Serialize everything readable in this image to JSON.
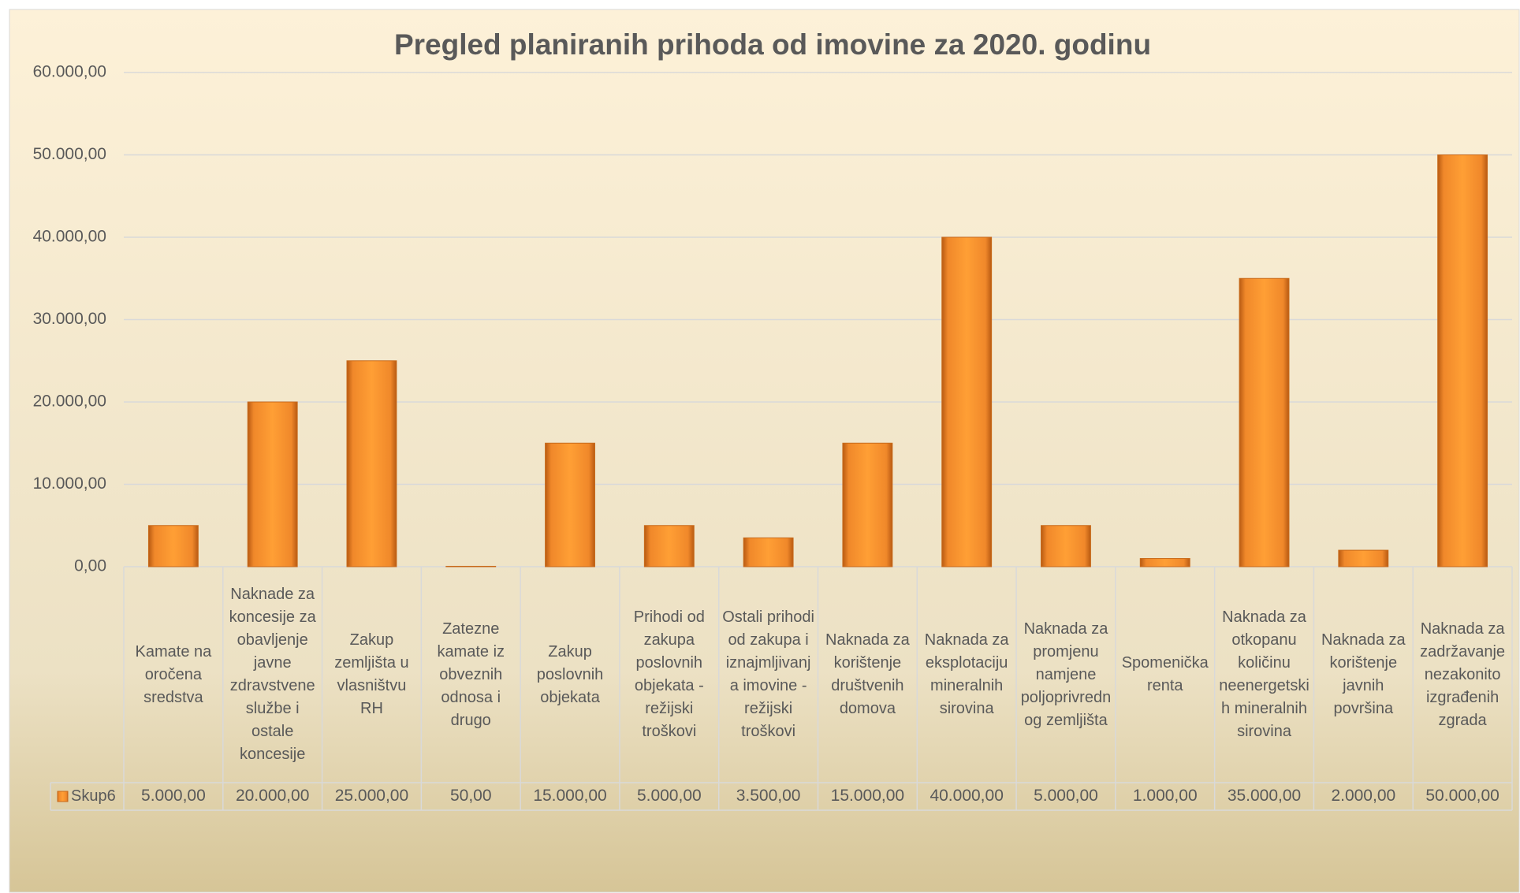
{
  "chart_data": {
    "type": "bar",
    "title": "Pregled planiranih prihoda od imovine za 2020. godinu",
    "categories": [
      "Kamate na oročena sredstva",
      "Naknade za koncesije za obavljenje javne zdravstvene službe i ostale koncesije",
      "Zakup zemljišta u vlasništvu RH",
      "Zatezne kamate iz obveznih odnosa i drugo",
      "Zakup poslovnih objekata",
      "Prihodi od zakupa poslovnih objekata - režijski troškovi",
      "Ostali prihodi od zakupa i iznajmljivanja imovine - režijski troškovi",
      "Naknada za korištenje društvenih domova",
      "Naknada za eksplotaciju mineralnih sirovina",
      "Naknada za promjenu namjene poljoprivrednog zemljišta",
      "Spomenička renta",
      "Naknada za otkopanu količinu neenergetskih mineralnih sirovina",
      "Naknada za korištenje javnih površina",
      "Naknada za zadržavanje nezakonito izgrađenih zgrada"
    ],
    "series": [
      {
        "name": "Skup6",
        "color": "#f28c28",
        "values": [
          5000,
          20000,
          25000,
          50,
          15000,
          5000,
          3500,
          15000,
          40000,
          5000,
          1000,
          35000,
          2000,
          50000
        ],
        "value_labels": [
          "5.000,00",
          "20.000,00",
          "25.000,00",
          "50,00",
          "15.000,00",
          "5.000,00",
          "3.500,00",
          "15.000,00",
          "40.000,00",
          "5.000,00",
          "1.000,00",
          "35.000,00",
          "2.000,00",
          "50.000,00"
        ]
      }
    ],
    "ylim": [
      0,
      60000
    ],
    "yticks": [
      {
        "value": 0,
        "label": "0,00"
      },
      {
        "value": 10000,
        "label": "10.000,00"
      },
      {
        "value": 20000,
        "label": "20.000,00"
      },
      {
        "value": 30000,
        "label": "30.000,00"
      },
      {
        "value": 40000,
        "label": "40.000,00"
      },
      {
        "value": 50000,
        "label": "50.000,00"
      },
      {
        "value": 60000,
        "label": "60.000,00"
      }
    ],
    "grid": true,
    "data_table": true
  }
}
